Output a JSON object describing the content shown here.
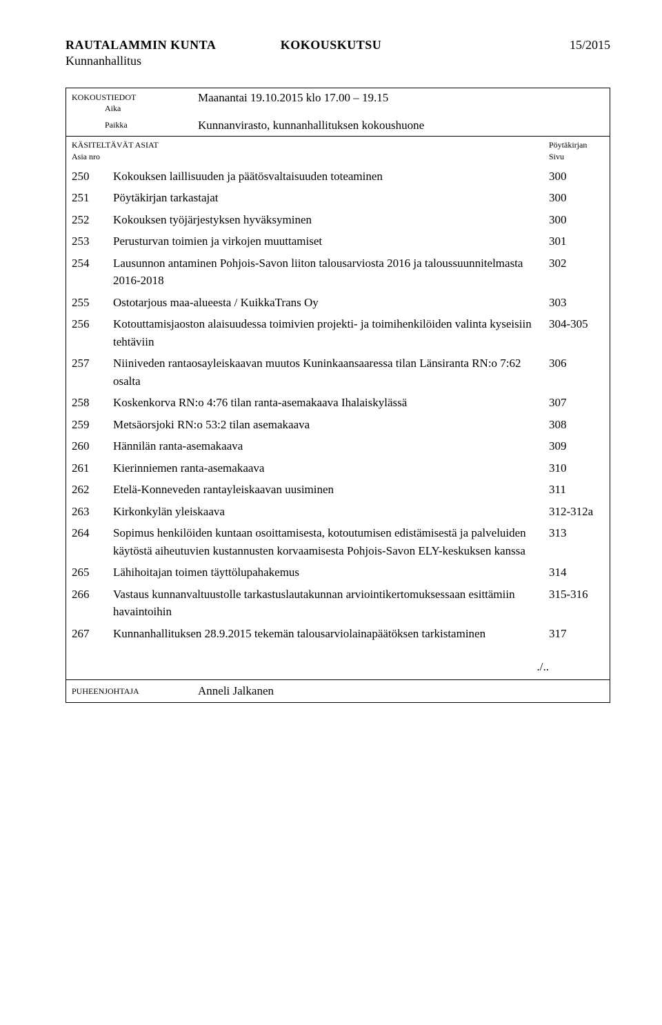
{
  "header": {
    "org": "RAUTALAMMIN KUNTA",
    "doc_type": "KOKOUSKUTSU",
    "doc_num": "15/2015",
    "body": "Kunnanhallitus"
  },
  "meeting": {
    "info_label": "KOKOUSTIEDOT",
    "time_label": "Aika",
    "time_value": "Maanantai 19.10.2015 klo 17.00 – 19.15",
    "place_label": "Paikka",
    "place_value": "Kunnanvirasto, kunnanhallituksen kokoushuone"
  },
  "agenda": {
    "section_label": "KÄSITELTÄVÄT ASIAT",
    "section_sub": "Asia nro",
    "right_col_top": "Pöytäkirjan",
    "right_col_sub": "Sivu",
    "items": [
      {
        "nro": "250",
        "text": "Kokouksen laillisuuden ja päätösvaltaisuuden toteaminen",
        "page": "300"
      },
      {
        "nro": "251",
        "text": "Pöytäkirjan tarkastajat",
        "page": "300"
      },
      {
        "nro": "252",
        "text": "Kokouksen työjärjestyksen hyväksyminen",
        "page": "300"
      },
      {
        "nro": "253",
        "text": "Perusturvan toimien ja virkojen muuttamiset",
        "page": "301"
      },
      {
        "nro": "254",
        "text": "Lausunnon antaminen Pohjois-Savon liiton talousarviosta 2016 ja taloussuunnitelmasta 2016-2018",
        "page": "302"
      },
      {
        "nro": "255",
        "text": "Ostotarjous maa-alueesta / KuikkaTrans Oy",
        "page": "303"
      },
      {
        "nro": "256",
        "text": "Kotouttamisjaoston alaisuudessa toimivien projekti- ja toimihenkilöiden valinta kyseisiin tehtäviin",
        "page": "304-305"
      },
      {
        "nro": "257",
        "text": "Niiniveden rantaosayleiskaavan muutos Kuninkaansaaressa tilan Länsiranta RN:o 7:62 osalta",
        "page": "306"
      },
      {
        "nro": "258",
        "text": "Koskenkorva RN:o 4:76 tilan ranta-asemakaava Ihalaiskylässä",
        "page": "307"
      },
      {
        "nro": "259",
        "text": "Metsäorsjoki RN:o 53:2 tilan asemakaava",
        "page": "308"
      },
      {
        "nro": "260",
        "text": "Hännilän ranta-asemakaava",
        "page": "309"
      },
      {
        "nro": "261",
        "text": "Kierinniemen ranta-asemakaava",
        "page": "310"
      },
      {
        "nro": "262",
        "text": "Etelä-Konneveden rantayleiskaavan uusiminen",
        "page": "311"
      },
      {
        "nro": "263",
        "text": "Kirkonkylän yleiskaava",
        "page": "312-312a"
      },
      {
        "nro": "264",
        "text": "Sopimus henkilöiden kuntaan osoittamisesta, kotoutumisen edistämisestä ja palveluiden käytöstä aiheutuvien kustannusten korvaamisesta Pohjois-Savon ELY-keskuksen kanssa",
        "page": "313"
      },
      {
        "nro": "265",
        "text": "Lähihoitajan toimen täyttölupahakemus",
        "page": "314"
      },
      {
        "nro": "266",
        "text": "Vastaus kunnanvaltuustolle tarkastuslautakunnan arviointikertomuksessaan esittämiin havaintoihin",
        "page": "315-316"
      },
      {
        "nro": "267",
        "text": "Kunnanhallituksen 28.9.2015 tekemän talousarviolainapäätöksen tarkistaminen",
        "page": "317"
      }
    ],
    "continuation": "./.."
  },
  "chair": {
    "label": "PUHEENJOHTAJA",
    "name": "Anneli Jalkanen"
  }
}
